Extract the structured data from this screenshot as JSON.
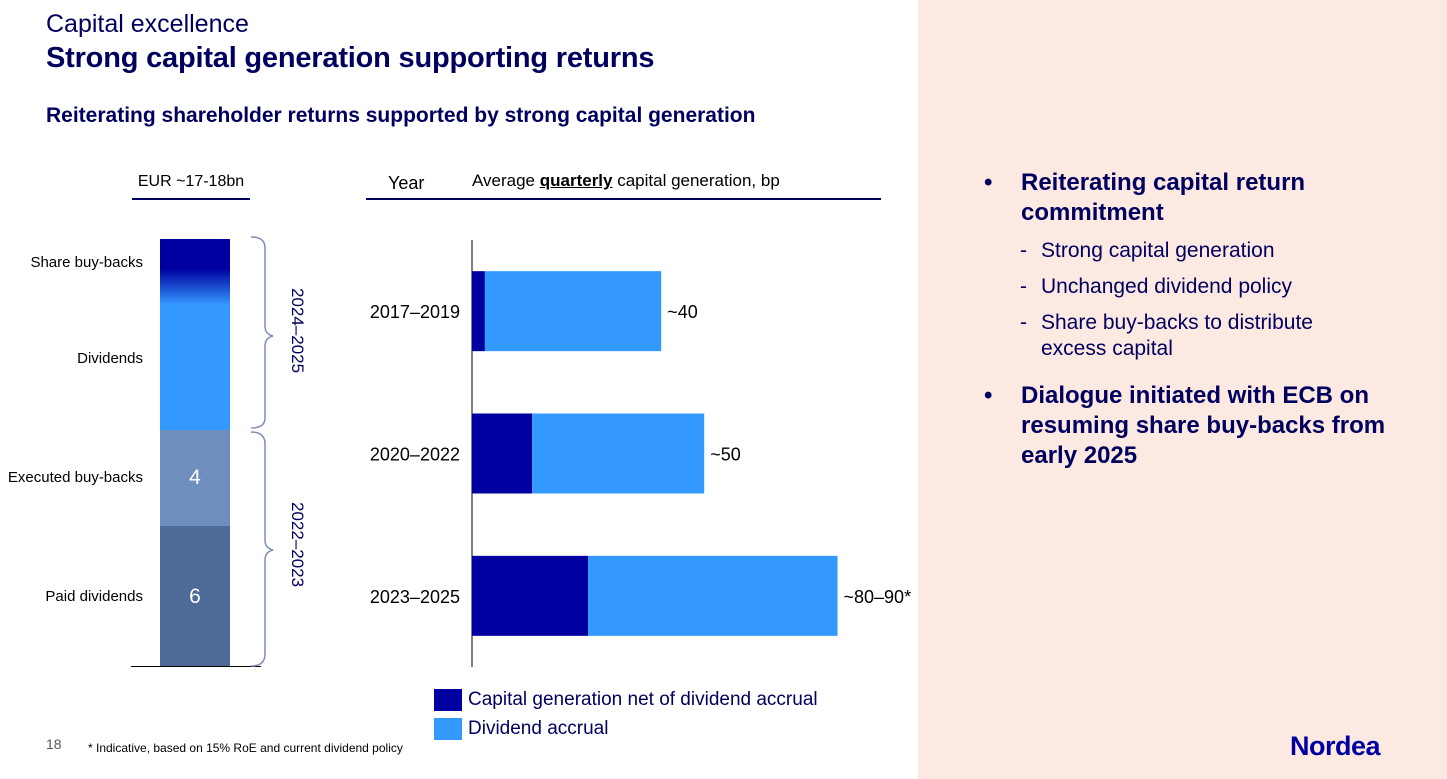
{
  "header": {
    "section": "Capital excellence",
    "title": "Strong capital generation supporting returns",
    "subtitle": "Reiterating shareholder returns supported by strong capital generation"
  },
  "stack": {
    "header": "EUR ~17-18bn",
    "segments": [
      {
        "label": "Share buy-backs",
        "value": ""
      },
      {
        "label": "Dividends",
        "value": ""
      },
      {
        "label": "Executed buy-backs",
        "value": "4"
      },
      {
        "label": "Paid dividends",
        "value": "6"
      }
    ],
    "periods": [
      "2024–2025",
      "2022–2023"
    ]
  },
  "chart_data": {
    "type": "bar",
    "orientation": "horizontal",
    "stacked": true,
    "header_left": "Year",
    "header_right_prefix": "Average ",
    "header_right_emphasis": "quarterly",
    "header_right_suffix": " capital generation, bp",
    "categories": [
      "2017–2019",
      "2020–2022",
      "2023–2025"
    ],
    "series": [
      {
        "name": "Capital generation net of dividend accrual",
        "values": [
          3,
          14,
          27
        ],
        "color": "#0000a0"
      },
      {
        "name": "Dividend accrual",
        "values": [
          41,
          40,
          58
        ],
        "color": "#3399ff"
      }
    ],
    "value_labels": [
      "~40",
      "~50",
      "~80–90*"
    ],
    "xlim": [
      0,
      100
    ]
  },
  "footnote": "* Indicative, based on 15% RoE and current dividend policy",
  "page_number": "18",
  "bullets": {
    "b1": "Reiterating capital return commitment",
    "sub1": "Strong capital generation",
    "sub2": "Unchanged dividend policy",
    "sub3": "Share buy-backs to distribute excess capital",
    "b2": "Dialogue initiated with ECB on resuming share buy-backs from early 2025",
    "dot": "•",
    "dash": "-"
  },
  "logo": "Nordea",
  "colors": {
    "navy": "#00005e",
    "dark_blue": "#0000a0",
    "light_blue": "#3399ff",
    "grey_blue": "#6e8fbd",
    "slate_blue": "#4d6a99",
    "panel": "#fbe9e2"
  }
}
